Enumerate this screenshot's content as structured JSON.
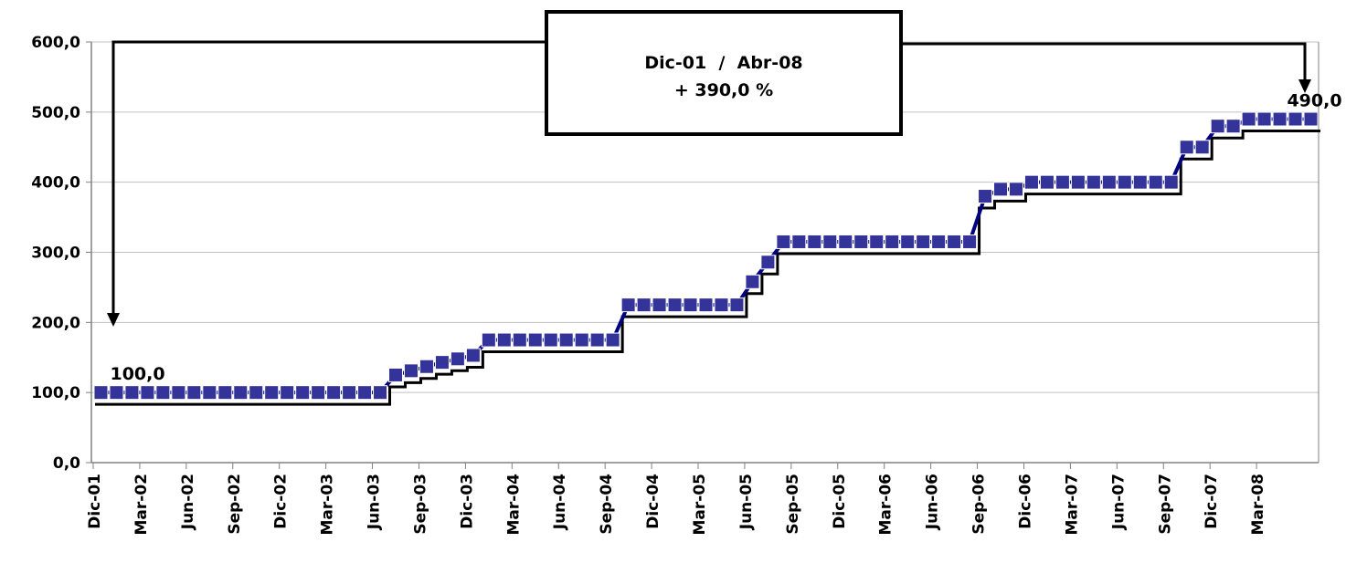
{
  "chart_data": {
    "type": "line",
    "title": "",
    "xlabel": "",
    "ylabel": "",
    "ylim": [
      0,
      600
    ],
    "y_ticks": [
      "0,0",
      "100,0",
      "200,0",
      "300,0",
      "400,0",
      "500,0",
      "600,0"
    ],
    "x_tick_labels": [
      "Dic-01",
      "Mar-02",
      "Jun-02",
      "Sep-02",
      "Dic-02",
      "Mar-03",
      "Jun-03",
      "Sep-03",
      "Dic-03",
      "Mar-04",
      "Jun-04",
      "Sep-04",
      "Dic-04",
      "Mar-05",
      "Jun-05",
      "Sep-05",
      "Dic-05",
      "Mar-06",
      "Jun-06",
      "Sep-06",
      "Dic-06",
      "Mar-07",
      "Jun-07",
      "Sep-07",
      "Dic-07",
      "Mar-08"
    ],
    "grid": true,
    "legend": "none",
    "series": [
      {
        "marker": "square",
        "color": "#333399",
        "values": [
          100,
          100,
          100,
          100,
          100,
          100,
          100,
          100,
          100,
          100,
          100,
          100,
          100,
          100,
          100,
          100,
          100,
          100,
          100,
          125,
          131,
          137,
          143,
          148,
          153,
          175,
          175,
          175,
          175,
          175,
          175,
          175,
          175,
          175,
          225,
          225,
          225,
          225,
          225,
          225,
          225,
          225,
          258,
          286,
          315,
          315,
          315,
          315,
          315,
          315,
          315,
          315,
          315,
          315,
          315,
          315,
          315,
          380,
          390,
          390,
          400,
          400,
          400,
          400,
          400,
          400,
          400,
          400,
          400,
          400,
          450,
          450,
          480,
          480,
          490,
          490,
          490,
          490,
          490
        ]
      }
    ],
    "data_labels": [
      {
        "index": 0,
        "text": "100,0"
      },
      {
        "index": 78,
        "text": "490,0"
      }
    ],
    "annotation": {
      "line1": "Dic-01  /  Abr-08",
      "line2": "+ 390,0 %"
    }
  },
  "colors": {
    "series": "#333399",
    "line": "#000080",
    "grid": "#c0c0c0",
    "axis": "#808080"
  }
}
